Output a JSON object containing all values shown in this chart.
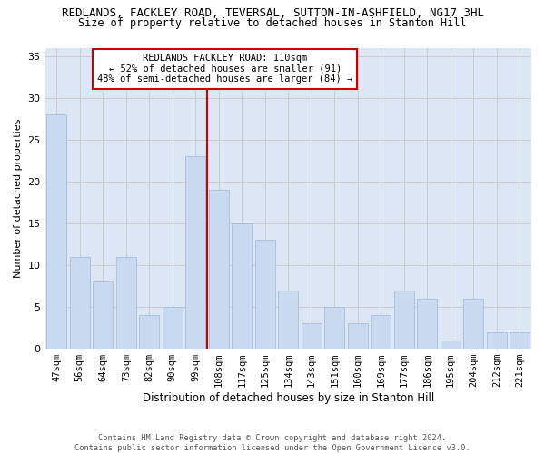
{
  "title": "REDLANDS, FACKLEY ROAD, TEVERSAL, SUTTON-IN-ASHFIELD, NG17 3HL",
  "subtitle": "Size of property relative to detached houses in Stanton Hill",
  "xlabel": "Distribution of detached houses by size in Stanton Hill",
  "ylabel": "Number of detached properties",
  "categories": [
    "47sqm",
    "56sqm",
    "64sqm",
    "73sqm",
    "82sqm",
    "90sqm",
    "99sqm",
    "108sqm",
    "117sqm",
    "125sqm",
    "134sqm",
    "143sqm",
    "151sqm",
    "160sqm",
    "169sqm",
    "177sqm",
    "186sqm",
    "195sqm",
    "204sqm",
    "212sqm",
    "221sqm"
  ],
  "values": [
    28,
    11,
    8,
    11,
    4,
    5,
    23,
    19,
    15,
    13,
    7,
    3,
    5,
    3,
    4,
    7,
    6,
    1,
    6,
    2,
    2
  ],
  "bar_color": "#c9d9f0",
  "bar_edgecolor": "#a0b8d8",
  "bar_linewidth": 0.5,
  "vline_idx": 7,
  "vline_color": "#cc0000",
  "vline_linewidth": 1.5,
  "annotation_text": "REDLANDS FACKLEY ROAD: 110sqm\n← 52% of detached houses are smaller (91)\n48% of semi-detached houses are larger (84) →",
  "annotation_box_edgecolor": "#cc0000",
  "annotation_box_facecolor": "white",
  "annotation_fontsize": 7.5,
  "ylim": [
    0,
    36
  ],
  "yticks": [
    0,
    5,
    10,
    15,
    20,
    25,
    30,
    35
  ],
  "grid_color": "#cccccc",
  "grid_linewidth": 0.7,
  "background_color": "#dde6f5",
  "footer_text": "Contains HM Land Registry data © Crown copyright and database right 2024.\nContains public sector information licensed under the Open Government Licence v3.0.",
  "title_fontsize": 9,
  "subtitle_fontsize": 8.5,
  "xlabel_fontsize": 8.5,
  "ylabel_fontsize": 8,
  "tick_fontsize": 7.5,
  "ytick_fontsize": 8
}
